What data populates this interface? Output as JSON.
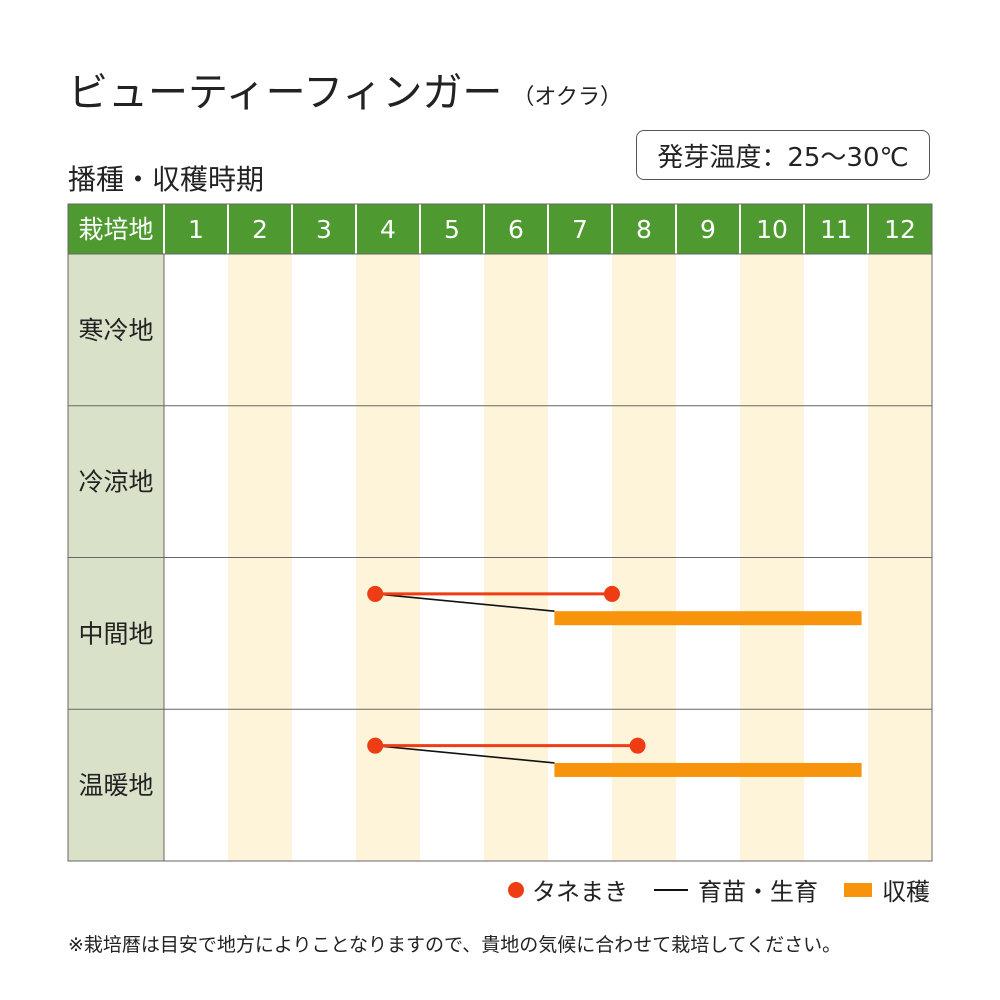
{
  "title": "ビューティーフィンガー",
  "title_sub": "（オクラ）",
  "section_title": "播種・収穫時期",
  "germination": "発芽温度：25〜30℃",
  "chart_data": {
    "type": "table",
    "corner_label": "栽培地",
    "months": [
      "1",
      "2",
      "3",
      "4",
      "5",
      "6",
      "7",
      "8",
      "9",
      "10",
      "11",
      "12"
    ],
    "regions": [
      {
        "name": "寒冷地",
        "sowing": null,
        "seedling": null,
        "harvest": null
      },
      {
        "name": "冷涼地",
        "sowing": null,
        "seedling": null,
        "harvest": null
      },
      {
        "name": "中間地",
        "sowing": [
          4.3,
          8.0
        ],
        "seedling": [
          4.3,
          7.1
        ],
        "harvest": [
          7.1,
          11.9
        ]
      },
      {
        "name": "温暖地",
        "sowing": [
          4.3,
          8.4
        ],
        "seedling": [
          4.3,
          7.1
        ],
        "harvest": [
          7.1,
          11.9
        ]
      }
    ],
    "colors": {
      "header": "#4e9a31",
      "region_col": "#d9e2c9",
      "stripe": "#fdf4d9",
      "sowing": "#ee3c14",
      "seedling": "#111111",
      "harvest": "#f7940c"
    }
  },
  "legend": {
    "sowing": "タネまき",
    "seedling": "育苗・生育",
    "harvest": "収穫"
  },
  "footnote": "※栽培暦は目安で地方によりことなりますので、貴地の気候に合わせて栽培してください。"
}
